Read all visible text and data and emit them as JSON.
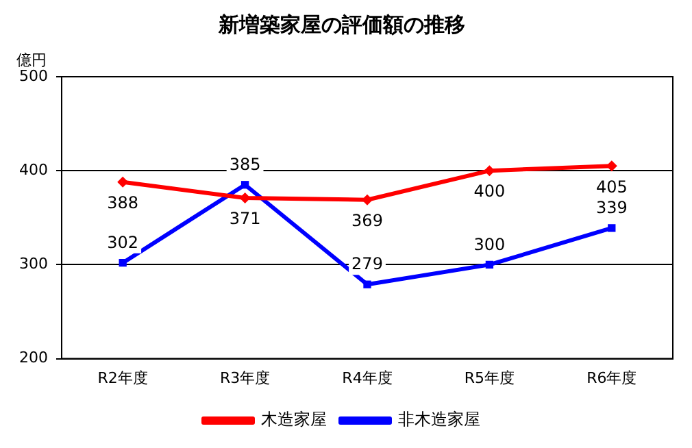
{
  "chart_data": {
    "type": "line",
    "title": "新増築家屋の評価額の推移",
    "ylabel": "億円",
    "categories": [
      "R2年度",
      "R3年度",
      "R4年度",
      "R5年度",
      "R6年度"
    ],
    "series": [
      {
        "name": "木造家屋",
        "color": "#ff0000",
        "marker": "diamond",
        "values": [
          388,
          371,
          369,
          400,
          405
        ]
      },
      {
        "name": "非木造家屋",
        "color": "#0000ff",
        "marker": "square",
        "values": [
          302,
          385,
          279,
          300,
          339
        ]
      }
    ],
    "ylim": [
      200,
      500
    ],
    "yticks": [
      200,
      300,
      400,
      500
    ],
    "grid": "y",
    "legend": "bottom",
    "data_labels": true,
    "line_style": "solid"
  }
}
